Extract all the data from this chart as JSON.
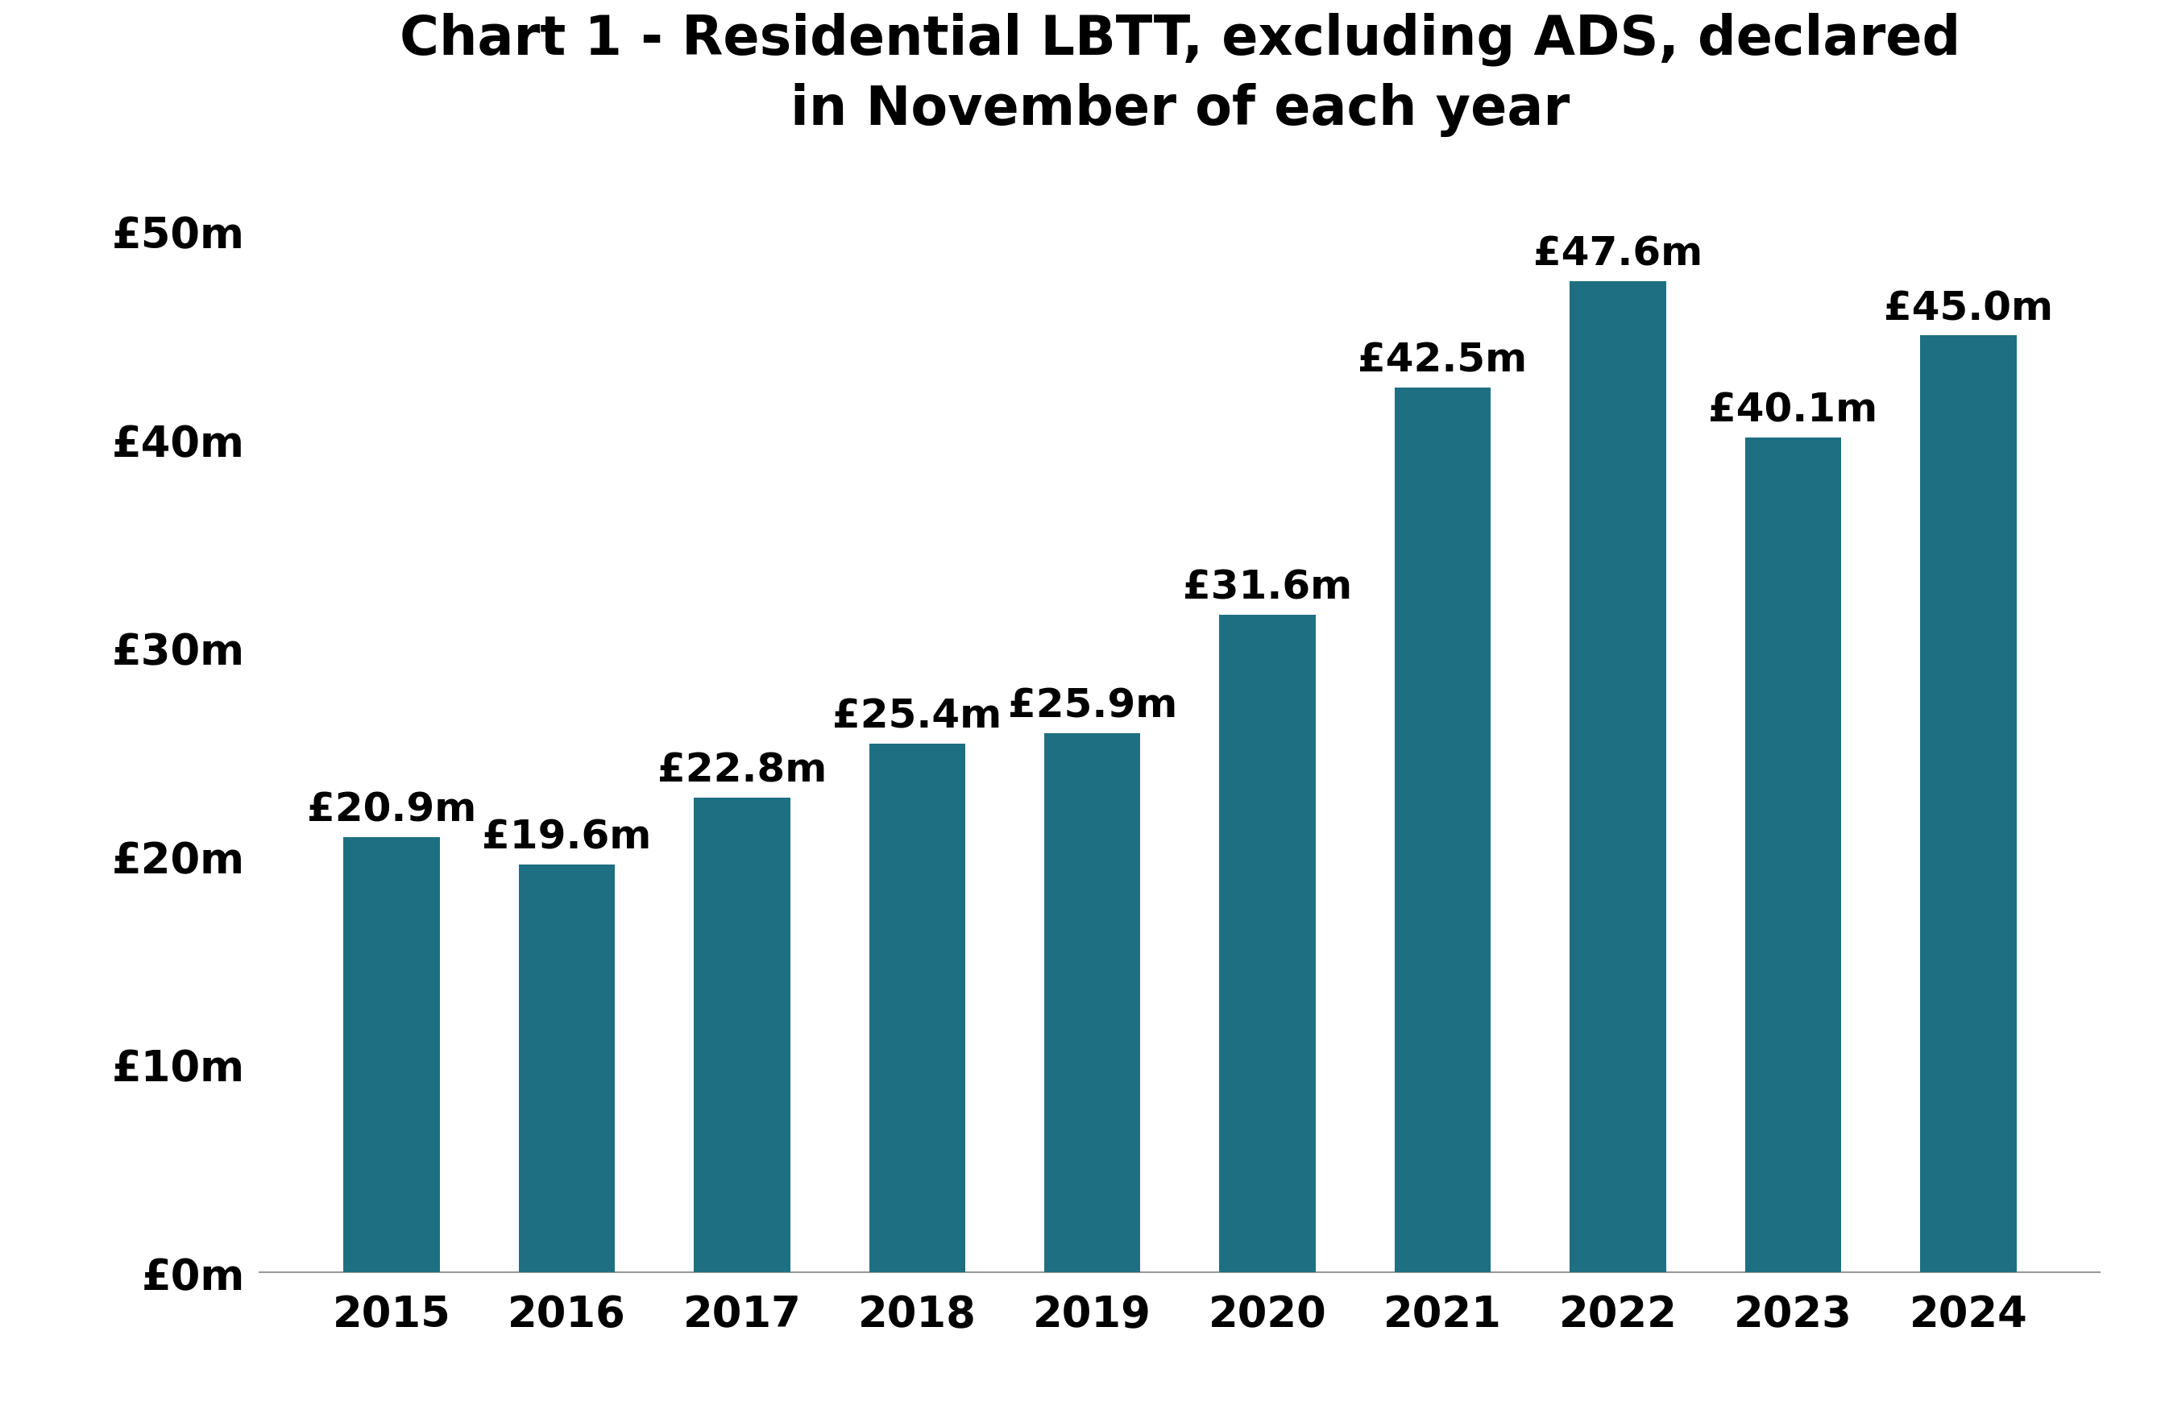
{
  "title": "Chart 1 - Residential LBTT, excluding ADS, declared\nin November of each year",
  "categories": [
    "2015",
    "2016",
    "2017",
    "2018",
    "2019",
    "2020",
    "2021",
    "2022",
    "2023",
    "2024"
  ],
  "values": [
    20.9,
    19.6,
    22.8,
    25.4,
    25.9,
    31.6,
    42.5,
    47.6,
    40.1,
    45.0
  ],
  "labels": [
    "£20.9m",
    "£19.6m",
    "£22.8m",
    "£25.4m",
    "£25.9m",
    "£31.6m",
    "£42.5m",
    "£47.6m",
    "£40.1m",
    "£45.0m"
  ],
  "bar_color": "#1e6f82",
  "yticks": [
    0,
    10,
    20,
    30,
    40,
    50
  ],
  "ytick_labels": [
    "£0m",
    "£10m",
    "£20m",
    "£30m",
    "£40m",
    "£50m"
  ],
  "ylim": [
    0,
    53
  ],
  "background_color": "#ffffff",
  "title_fontsize": 48,
  "tick_fontsize": 38,
  "label_fontsize": 36,
  "bar_width": 0.55
}
